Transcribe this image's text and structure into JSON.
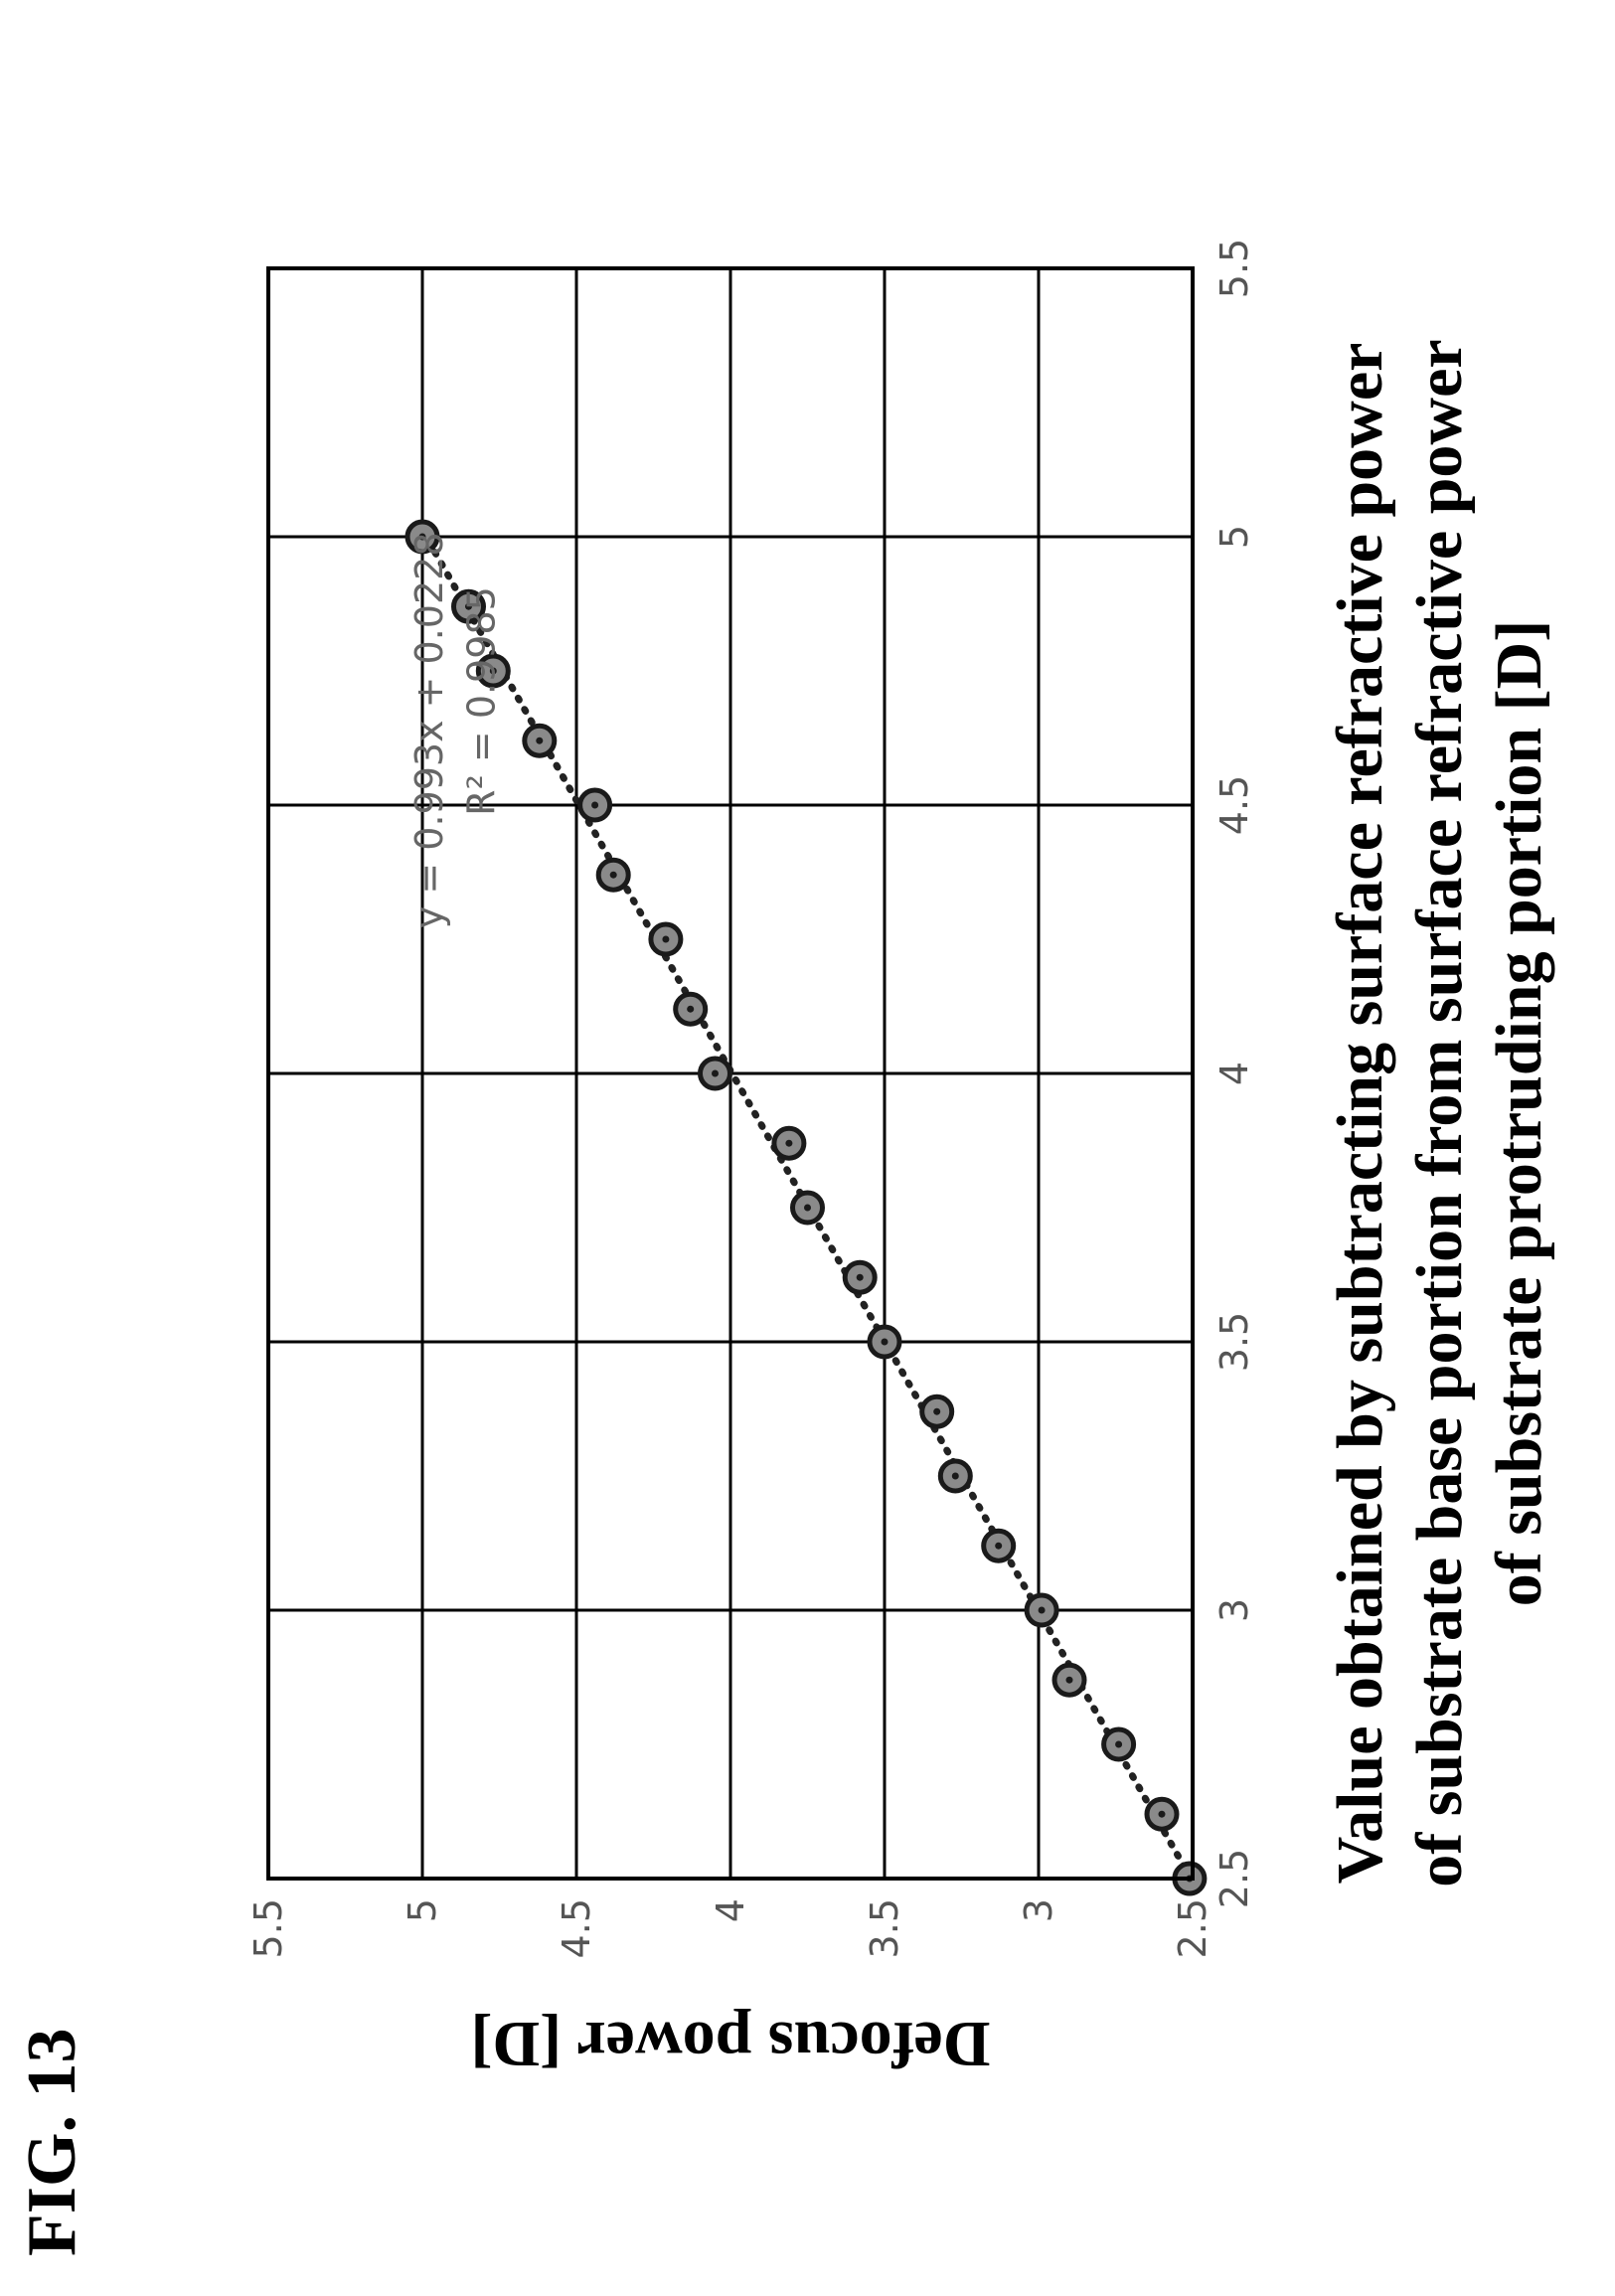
{
  "figure_label": "FIG. 13",
  "chart_data": {
    "type": "scatter",
    "title": "",
    "xlabel_lines": [
      "Value obtained by subtracting surface refractive power",
      "of substrate base portion from surface refractive power",
      "of substrate protruding portion [D]"
    ],
    "ylabel": "Defocus power [D]",
    "xlim": [
      2.5,
      5.5
    ],
    "ylim": [
      2.5,
      5.5
    ],
    "x_ticks": [
      "2.5",
      "3",
      "3.5",
      "4",
      "4.5",
      "5",
      "5.5"
    ],
    "y_ticks": [
      "2.5",
      "3",
      "3.5",
      "4",
      "4.5",
      "5",
      "5.5"
    ],
    "grid": true,
    "series": [
      {
        "points": [
          [
            2.5,
            2.51
          ],
          [
            2.62,
            2.6
          ],
          [
            2.75,
            2.74
          ],
          [
            2.87,
            2.9
          ],
          [
            3.0,
            2.99
          ],
          [
            3.12,
            3.13
          ],
          [
            3.25,
            3.27
          ],
          [
            3.37,
            3.33
          ],
          [
            3.5,
            3.5
          ],
          [
            3.62,
            3.58
          ],
          [
            3.75,
            3.75
          ],
          [
            3.87,
            3.81
          ],
          [
            4.0,
            4.05
          ],
          [
            4.12,
            4.13
          ],
          [
            4.25,
            4.21
          ],
          [
            4.37,
            4.38
          ],
          [
            4.5,
            4.44
          ],
          [
            4.62,
            4.62
          ],
          [
            4.75,
            4.77
          ],
          [
            4.87,
            4.85
          ],
          [
            5.0,
            5.0
          ]
        ]
      }
    ],
    "trendline": {
      "slope": 0.993,
      "intercept": 0.0228,
      "equation": "y = 0.993x + 0.0228",
      "r_squared": "R² = 0.9985"
    }
  }
}
